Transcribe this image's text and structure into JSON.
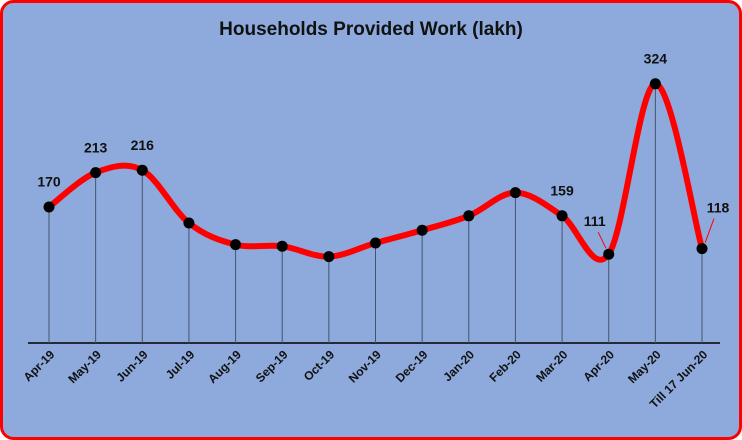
{
  "chart_data": {
    "type": "line",
    "title": "Households Provided Work (lakh)",
    "categories": [
      "Apr-19",
      "May-19",
      "Jun-19",
      "Jul-19",
      "Aug-19",
      "Sep-19",
      "Oct-19",
      "Nov-19",
      "Dec-19",
      "Jan-20",
      "Feb-20",
      "Mar-20",
      "Apr-20",
      "May-20",
      "Till 17 Jun-20"
    ],
    "values": [
      170,
      213,
      216,
      150,
      123,
      121,
      108,
      125,
      141,
      159,
      188,
      159,
      111,
      324,
      118
    ],
    "value_labels": [
      "170",
      "213",
      "216",
      null,
      null,
      null,
      null,
      null,
      null,
      null,
      null,
      "159",
      "111",
      "324",
      "118"
    ],
    "color": "#ff0000",
    "marker_color": "#000000",
    "smooth": true,
    "ylim": [
      0,
      400
    ]
  }
}
